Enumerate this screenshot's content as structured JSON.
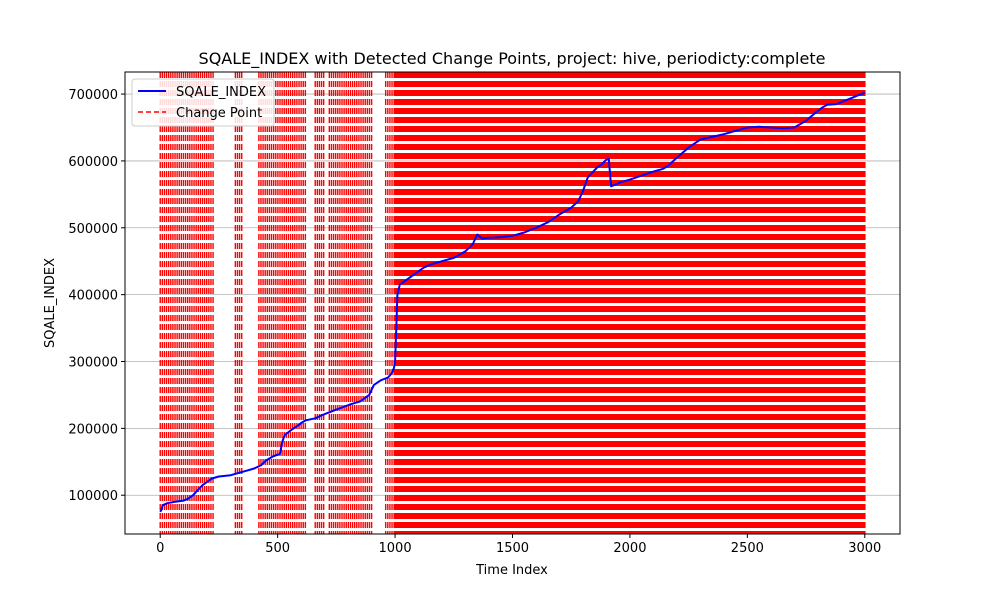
{
  "chart_data": {
    "type": "line",
    "title": "SQALE_INDEX with Detected Change Points, project: hive, periodicty:complete",
    "xlabel": "Time Index",
    "ylabel": "SQALE_INDEX",
    "xlim": [
      -150,
      3150
    ],
    "ylim": [
      42000,
      733000
    ],
    "x_ticks": [
      0,
      500,
      1000,
      1500,
      2000,
      2500,
      3000
    ],
    "x_tick_labels": [
      "0",
      "500",
      "1000",
      "1500",
      "2000",
      "2500",
      "3000"
    ],
    "y_ticks": [
      100000,
      200000,
      300000,
      400000,
      500000,
      600000,
      700000
    ],
    "y_tick_labels": [
      "100000",
      "200000",
      "300000",
      "400000",
      "500000",
      "600000",
      "700000"
    ],
    "grid": true,
    "legend": {
      "position": "top-left",
      "entries": [
        {
          "label": "SQALE_INDEX",
          "color": "#0000ff",
          "style": "solid"
        },
        {
          "label": "Change Point",
          "color": "#ff0000",
          "style": "dashed"
        }
      ]
    },
    "series": [
      {
        "name": "SQALE_INDEX",
        "color": "#0000ff",
        "x": [
          0,
          5,
          10,
          30,
          60,
          100,
          120,
          140,
          160,
          180,
          200,
          220,
          250,
          300,
          330,
          360,
          400,
          430,
          450,
          480,
          510,
          520,
          530,
          560,
          590,
          600,
          620,
          660,
          690,
          720,
          750,
          780,
          810,
          850,
          890,
          910,
          940,
          970,
          985,
          995,
          1000,
          1005,
          1010,
          1020,
          1040,
          1060,
          1080,
          1100,
          1120,
          1150,
          1200,
          1250,
          1300,
          1330,
          1350,
          1370,
          1400,
          1450,
          1500,
          1550,
          1600,
          1650,
          1700,
          1750,
          1780,
          1800,
          1820,
          1860,
          1880,
          1900,
          1910,
          1920,
          1960,
          2000,
          2050,
          2100,
          2140,
          2160,
          2200,
          2250,
          2300,
          2350,
          2400,
          2450,
          2500,
          2550,
          2600,
          2650,
          2700,
          2750,
          2800,
          2820,
          2840,
          2880,
          2950,
          2970,
          3000
        ],
        "y": [
          75000,
          78000,
          85000,
          88000,
          90000,
          92000,
          95000,
          100000,
          108000,
          115000,
          120000,
          125000,
          128000,
          130000,
          133000,
          136000,
          140000,
          145000,
          152000,
          158000,
          162000,
          180000,
          190000,
          198000,
          205000,
          208000,
          212000,
          215000,
          220000,
          224000,
          228000,
          232000,
          236000,
          240000,
          250000,
          265000,
          272000,
          276000,
          282000,
          290000,
          300000,
          350000,
          400000,
          415000,
          420000,
          425000,
          430000,
          435000,
          440000,
          445000,
          450000,
          455000,
          465000,
          475000,
          490000,
          484000,
          485000,
          486000,
          488000,
          493000,
          500000,
          508000,
          520000,
          530000,
          540000,
          555000,
          575000,
          590000,
          595000,
          602000,
          603000,
          562000,
          568000,
          572000,
          578000,
          584000,
          588000,
          592000,
          605000,
          620000,
          632000,
          636000,
          640000,
          645000,
          650000,
          651000,
          650000,
          649000,
          650000,
          660000,
          675000,
          680000,
          684000,
          685000,
          695000,
          698000,
          702000
        ]
      }
    ],
    "change_points": {
      "name": "Change Point",
      "color": "#ff0000",
      "segments_x": [
        [
          0,
          230
        ],
        [
          320,
          350
        ],
        [
          420,
          620
        ],
        [
          660,
          700
        ],
        [
          720,
          900
        ],
        [
          960,
          1000
        ],
        [
          1000,
          3000
        ]
      ],
      "dense_from": 1000
    }
  }
}
